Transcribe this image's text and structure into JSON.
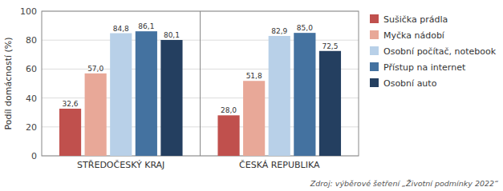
{
  "chart_data": {
    "type": "bar",
    "categories": [
      "STŘEDOČESKÝ KRAJ",
      "ČESKÁ REPUBLIKA"
    ],
    "series": [
      {
        "name": "Sušička prádla",
        "color": "#c0504d",
        "values": [
          32.6,
          28.0
        ],
        "value_labels": [
          "32,6",
          "28,0"
        ]
      },
      {
        "name": "Myčka nádobí",
        "color": "#e8a898",
        "values": [
          57.0,
          51.8
        ],
        "value_labels": [
          "57,0",
          "51,8"
        ]
      },
      {
        "name": "Osobní počítač, notebook",
        "color": "#b8d0e8",
        "values": [
          84.8,
          82.9
        ],
        "value_labels": [
          "84,8",
          "82,9"
        ]
      },
      {
        "name": "Přístup na internet",
        "color": "#4472a0",
        "values": [
          86.1,
          85.0
        ],
        "value_labels": [
          "86,1",
          "85,0"
        ]
      },
      {
        "name": "Osobní auto",
        "color": "#243f60",
        "values": [
          80.1,
          72.5
        ],
        "value_labels": [
          "80,1",
          "72,5"
        ]
      }
    ],
    "ylabel": "Podíl domácností (%)",
    "ylim": [
      0,
      100
    ],
    "yticks": [
      0,
      20,
      40,
      60,
      80,
      100
    ],
    "grid": true,
    "legend": "right",
    "data_labels": true,
    "annotations": [
      "Zdroj: výběrové šetření „Životní podmínky 2022“"
    ]
  }
}
